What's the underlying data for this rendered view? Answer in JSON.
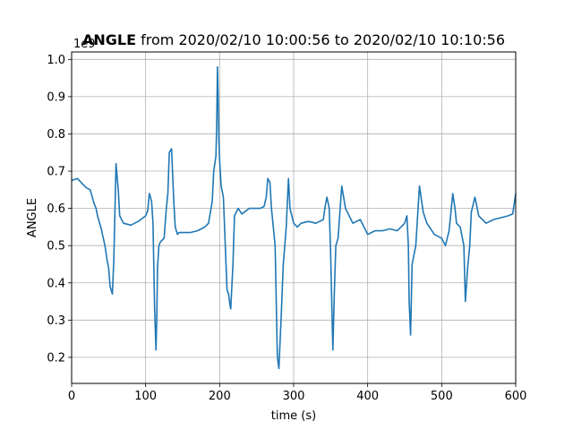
{
  "chart_data": {
    "type": "line",
    "title_bold": "ANGLE",
    "title_rest": " from 2020/02/10 10:00:56 to 2020/02/10 10:10:56",
    "xlabel": "time (s)",
    "ylabel": "ANGLE",
    "offset_text": "1e9",
    "xlim": [
      0,
      600
    ],
    "ylim": [
      0.13,
      1.02
    ],
    "xticks": [
      0,
      100,
      200,
      300,
      400,
      500,
      600
    ],
    "yticks": [
      0.2,
      0.3,
      0.4,
      0.5,
      0.6,
      0.7,
      0.8,
      0.9,
      1.0
    ],
    "ytick_labels": [
      "0.2",
      "0.3",
      "0.4",
      "0.5",
      "0.6",
      "0.7",
      "0.8",
      "0.9",
      "1.0"
    ],
    "grid": true,
    "line_color": "#1f77b4",
    "series": [
      {
        "x": [
          0,
          8,
          15,
          20,
          25,
          28,
          30,
          33,
          35,
          40,
          45,
          48,
          50,
          52,
          55,
          57,
          60,
          63,
          65,
          70,
          80,
          90,
          100,
          103,
          105,
          108,
          110,
          112,
          114,
          115,
          116,
          118,
          120,
          125,
          128,
          130,
          132,
          135,
          138,
          140,
          143,
          145,
          150,
          160,
          170,
          180,
          185,
          190,
          192,
          195,
          196,
          197,
          198,
          199,
          200,
          202,
          205,
          210,
          212,
          214,
          215,
          218,
          220,
          225,
          230,
          240,
          250,
          255,
          260,
          263,
          265,
          268,
          270,
          275,
          278,
          280,
          283,
          286,
          288,
          290,
          293,
          295,
          300,
          305,
          310,
          320,
          330,
          340,
          343,
          345,
          348,
          350,
          352,
          353,
          355,
          357,
          360,
          365,
          370,
          380,
          390,
          400,
          410,
          420,
          430,
          440,
          445,
          450,
          453,
          455,
          456,
          458,
          460,
          465,
          470,
          475,
          480,
          490,
          500,
          505,
          510,
          513,
          515,
          518,
          520,
          525,
          530,
          532,
          535,
          538,
          540,
          545,
          550,
          560,
          570,
          580,
          590,
          596,
          600
        ],
        "y": [
          0.675,
          0.68,
          0.665,
          0.655,
          0.65,
          0.63,
          0.615,
          0.6,
          0.58,
          0.545,
          0.5,
          0.46,
          0.44,
          0.39,
          0.37,
          0.46,
          0.72,
          0.65,
          0.58,
          0.56,
          0.555,
          0.565,
          0.58,
          0.595,
          0.64,
          0.62,
          0.56,
          0.34,
          0.22,
          0.3,
          0.44,
          0.5,
          0.51,
          0.52,
          0.6,
          0.64,
          0.75,
          0.76,
          0.62,
          0.55,
          0.53,
          0.535,
          0.535,
          0.535,
          0.54,
          0.55,
          0.56,
          0.62,
          0.7,
          0.74,
          0.82,
          0.98,
          0.9,
          0.78,
          0.73,
          0.66,
          0.63,
          0.38,
          0.37,
          0.34,
          0.33,
          0.45,
          0.58,
          0.6,
          0.585,
          0.6,
          0.6,
          0.6,
          0.605,
          0.63,
          0.68,
          0.67,
          0.6,
          0.5,
          0.2,
          0.17,
          0.3,
          0.45,
          0.5,
          0.55,
          0.68,
          0.6,
          0.56,
          0.55,
          0.56,
          0.565,
          0.56,
          0.57,
          0.61,
          0.63,
          0.6,
          0.48,
          0.3,
          0.22,
          0.38,
          0.5,
          0.52,
          0.66,
          0.6,
          0.56,
          0.57,
          0.53,
          0.54,
          0.54,
          0.545,
          0.54,
          0.55,
          0.56,
          0.58,
          0.5,
          0.35,
          0.26,
          0.45,
          0.5,
          0.66,
          0.59,
          0.56,
          0.53,
          0.52,
          0.5,
          0.54,
          0.6,
          0.64,
          0.6,
          0.56,
          0.55,
          0.5,
          0.35,
          0.44,
          0.5,
          0.59,
          0.63,
          0.58,
          0.56,
          0.57,
          0.575,
          0.58,
          0.585,
          0.64
        ]
      }
    ]
  }
}
